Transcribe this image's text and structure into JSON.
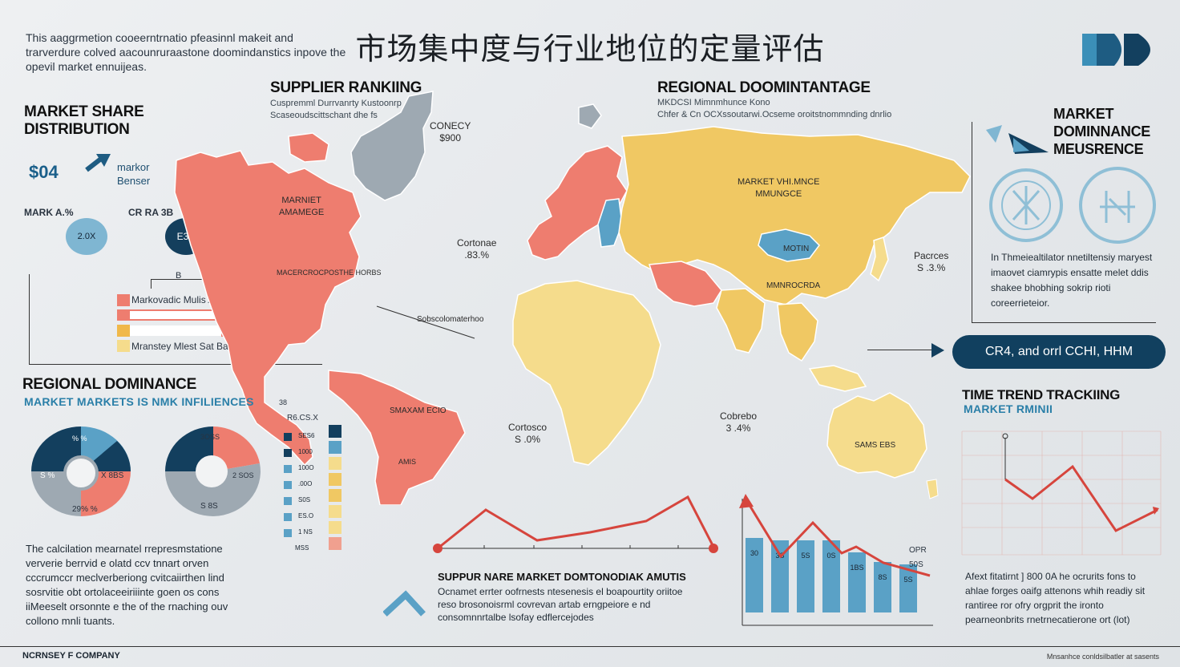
{
  "title": "市场集中度与行业地位的定量评估",
  "intro": "This aaggrmetion cooeerntrnatio pfeasinnl makeit and trarverdure colved aacounruraastone doomindanstics inpove the opevil market ennuijeas.",
  "market_share": {
    "heading_1": "MARKET SHARE",
    "heading_2": "DISTRIBUTION",
    "value": "$04",
    "arrow_caption_1": "markor",
    "arrow_caption_2": "Benser",
    "label_left": "MARK A.%",
    "label_right": "CR RA 3B",
    "circle_left": "2.0X",
    "circle_right": "E3B",
    "bracket_label": "B",
    "bar_label_1": "Markovadic Mulis Anrytjes",
    "bar_label_2": "Mranstey Mlest Sat Baess"
  },
  "regional_left": {
    "heading": "REGIONAL DOMINANCE",
    "subheading": "MARKET MARKETS IS NMK INFILIENCES",
    "donut1": {
      "top": "% %",
      "left": "S %",
      "right": "X 8BS",
      "bottom": "29% %"
    },
    "donut2": {
      "top": "3OSS",
      "right": "2 SOS",
      "bottom": "S 8S"
    },
    "list_header": "R6.CS.X",
    "list_extra": "38",
    "list_items": [
      "SES6",
      "1000",
      "100O",
      ".00O",
      "S0S",
      "ES.O",
      "1 NS",
      "MSS"
    ],
    "paragraph": "The calcilation mearnatel rrepresmstatione ververie berrvid e olatd ccv tnnart orven cccrumccr meclverberiong cvitcaiirthen lind sosrvitie obt ortolaceeiriiinte goen os cons iiMeeselt orsonnte e the of the rnaching ouv collono mnli tuants."
  },
  "supplier": {
    "heading": "SUPPLIER RANKIING",
    "sub1": "Cuspremml Durrvanrty Kustoonrp",
    "sub2": "Scaseoudscittschant dhe fs"
  },
  "regional_top": {
    "heading": "REGIONAL DOOMINTANTAGE",
    "sub1": "MKDCSI Mimnmhunce Kono",
    "sub2": "Chfer & Cn   OCXssoutarwi.Ocseme oroitstnommnding dnrlio"
  },
  "map": {
    "greenland": "CONECY\n$900",
    "north_america": "MARNIET\nAMAMEGE",
    "us": "MACERCROCPOSTHE HORBS",
    "centre_atlantic": "Cortonae\n.83.%",
    "eurasia": "MARKET VHI.MNCE\nMMUNGCE",
    "mongolia": "MOTIN",
    "china_label": "MMNROCRDA",
    "east": "Pacrces\nS .3.%",
    "africa_left": "Cortosco\nS .0%",
    "australia_top": "Cobrebo\n3 .4%",
    "australia": "SAMS EBS",
    "south_america": "SMAXAM ECIO",
    "brazil": "AMIS",
    "pointer_label": "Sobscolomaterhoo"
  },
  "dominance": {
    "heading_1": "MARKET",
    "heading_2": "DOMINNANCE",
    "heading_3": "MEUSRENCE",
    "paragraph": "In Thmeiealtilator nnetiltensiy maryest imaovet ciamrypis ensatte melet ddis shakee bhobhing sokrip rioti coreerrieteior.",
    "pill": "CR4, and orrl CCHI, HHM"
  },
  "trend": {
    "heading": "TIME TREND TRACKIING",
    "subheading": "MARKET RMINII",
    "bar_labels": [
      "30",
      "3S",
      "5S",
      "0S",
      "1BS",
      "8S",
      "5S"
    ],
    "bar_values": [
      0.62,
      0.6,
      0.6,
      0.6,
      0.5,
      0.42,
      0.4
    ],
    "bar_top_labels": [
      "OPR",
      "50S"
    ],
    "trend_paragraph": "Afext fitatirnt ] 800 0A he ocrurits fons to ahlae forges oaifg attenons whih readiy sit rantiree ror ofry orgprit the ironto pearneonbrits rnetrnecatierone ort (lot)"
  },
  "bottom_center": {
    "heading": "SUPPUR NARE MARKET DOMTONODIAK AMUTIS",
    "paragraph": "Ocnamet errter oofrnests ntesenesis el boapourtity oriitoe reso brosonoisrml covrevan artab erngpeiore e nd consomnnrtalbe lsofay edflercejodes"
  },
  "footer": {
    "left": "NCRNSEY F COMPANY",
    "right": "Mnsanhce conldsilbatler at sasents"
  },
  "colors": {
    "coral": "#ee7d6f",
    "yellow": "#f0c863",
    "light_yellow": "#f5dc8c",
    "navy": "#133f5e",
    "teal": "#5aa1c6",
    "grey": "#9ea9b2",
    "red_line": "#d6453d"
  }
}
